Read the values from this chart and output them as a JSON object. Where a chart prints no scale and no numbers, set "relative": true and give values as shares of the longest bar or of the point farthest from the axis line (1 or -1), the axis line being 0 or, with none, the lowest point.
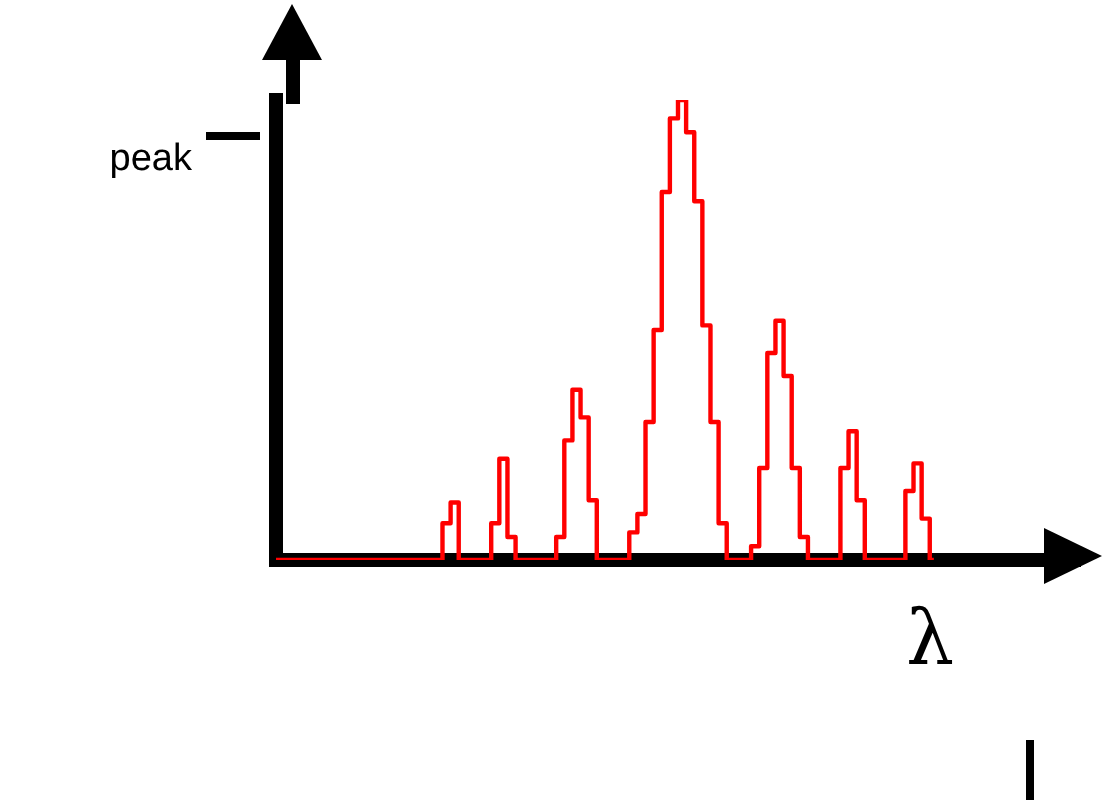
{
  "chart_data": {
    "type": "step",
    "relative": true,
    "xlabel": "λ",
    "annotations": [
      "peak"
    ],
    "legend": false,
    "grid": false,
    "marker": "none",
    "categories": [
      null,
      null,
      null,
      null,
      null,
      null,
      null,
      null,
      null,
      null,
      null,
      null,
      null,
      null,
      null,
      null,
      null,
      null,
      null,
      null,
      null,
      null,
      null,
      null,
      null,
      null,
      null,
      null,
      null,
      null,
      null,
      null,
      null,
      null,
      null,
      null,
      null,
      null,
      null,
      null,
      null,
      null,
      null,
      null,
      null,
      null,
      null,
      null,
      null,
      null,
      null,
      null,
      null,
      null,
      null,
      null,
      null,
      null,
      null,
      null,
      null,
      null,
      null,
      null,
      null,
      null,
      null,
      null,
      null,
      null,
      null,
      null,
      null,
      null,
      null,
      null,
      null,
      null,
      null,
      null,
      null,
      null,
      null,
      null,
      null,
      null,
      null,
      null,
      null,
      null,
      null,
      null,
      null,
      null,
      null,
      null,
      null,
      null,
      null,
      null
    ],
    "series": [
      {
        "color": "#ff0000",
        "values": [
          0,
          0,
          0,
          0,
          0,
          0,
          0,
          0,
          0,
          0,
          0,
          0,
          0,
          0,
          0,
          0,
          0,
          0,
          0,
          0,
          0,
          0.08,
          0.125,
          0,
          0,
          0,
          0,
          0.08,
          0.22,
          0.05,
          0,
          0,
          0,
          0,
          0,
          0.05,
          0.26,
          0.37,
          0.31,
          0.13,
          0,
          0,
          0,
          0,
          0.06,
          0.1,
          0.3,
          0.5,
          0.8,
          0.96,
          1,
          0.93,
          0.78,
          0.51,
          0.3,
          0.08,
          0,
          0,
          0,
          0.03,
          0.2,
          0.45,
          0.52,
          0.4,
          0.2,
          0.05,
          0,
          0,
          0,
          0,
          0.2,
          0.28,
          0.13,
          0,
          0,
          0,
          0,
          0,
          0.15,
          0.21,
          0.09,
          0,
          null,
          null,
          null,
          null,
          null,
          null,
          null,
          null,
          null,
          null,
          null,
          null,
          null,
          null,
          null,
          null,
          null,
          null
        ]
      }
    ]
  }
}
